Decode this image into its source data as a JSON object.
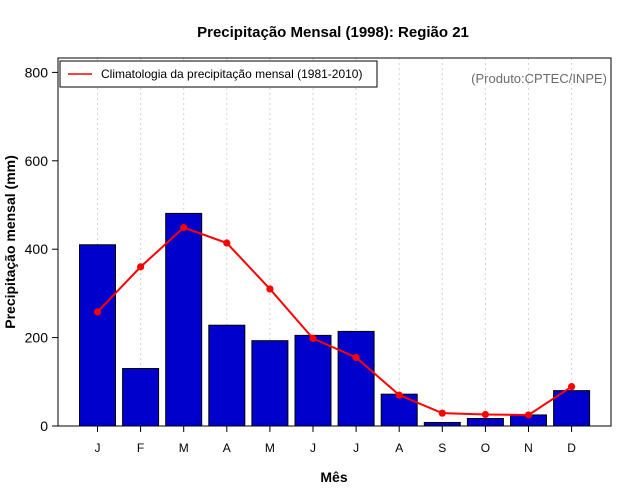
{
  "chart_data": {
    "type": "bar",
    "title": "Precipitação Mensal (1998): Região 21",
    "xlabel": "Mês",
    "ylabel": "Precipitação mensal (mm)",
    "categories": [
      "J",
      "F",
      "M",
      "A",
      "M",
      "J",
      "J",
      "A",
      "S",
      "O",
      "N",
      "D"
    ],
    "ylim": [
      0,
      800
    ],
    "yticks": [
      0,
      200,
      400,
      600,
      800
    ],
    "grid": true,
    "series": [
      {
        "name": "Precipitação mensal (1998)",
        "type": "bar",
        "color": "#0000cd",
        "values": [
          410,
          130,
          481,
          228,
          193,
          205,
          214,
          72,
          8,
          17,
          25,
          80
        ]
      },
      {
        "name": "Climatologia da precipitação mensal (1981-2010)",
        "type": "line",
        "color": "#ff0000",
        "values": [
          258,
          360,
          449,
          414,
          310,
          198,
          155,
          70,
          29,
          26,
          25,
          89
        ]
      }
    ],
    "legend": {
      "position": "top-left",
      "label": "Climatologia da precipitação mensal (1981-2010)"
    },
    "annotation": "(Produto:CPTEC/INPE)"
  }
}
